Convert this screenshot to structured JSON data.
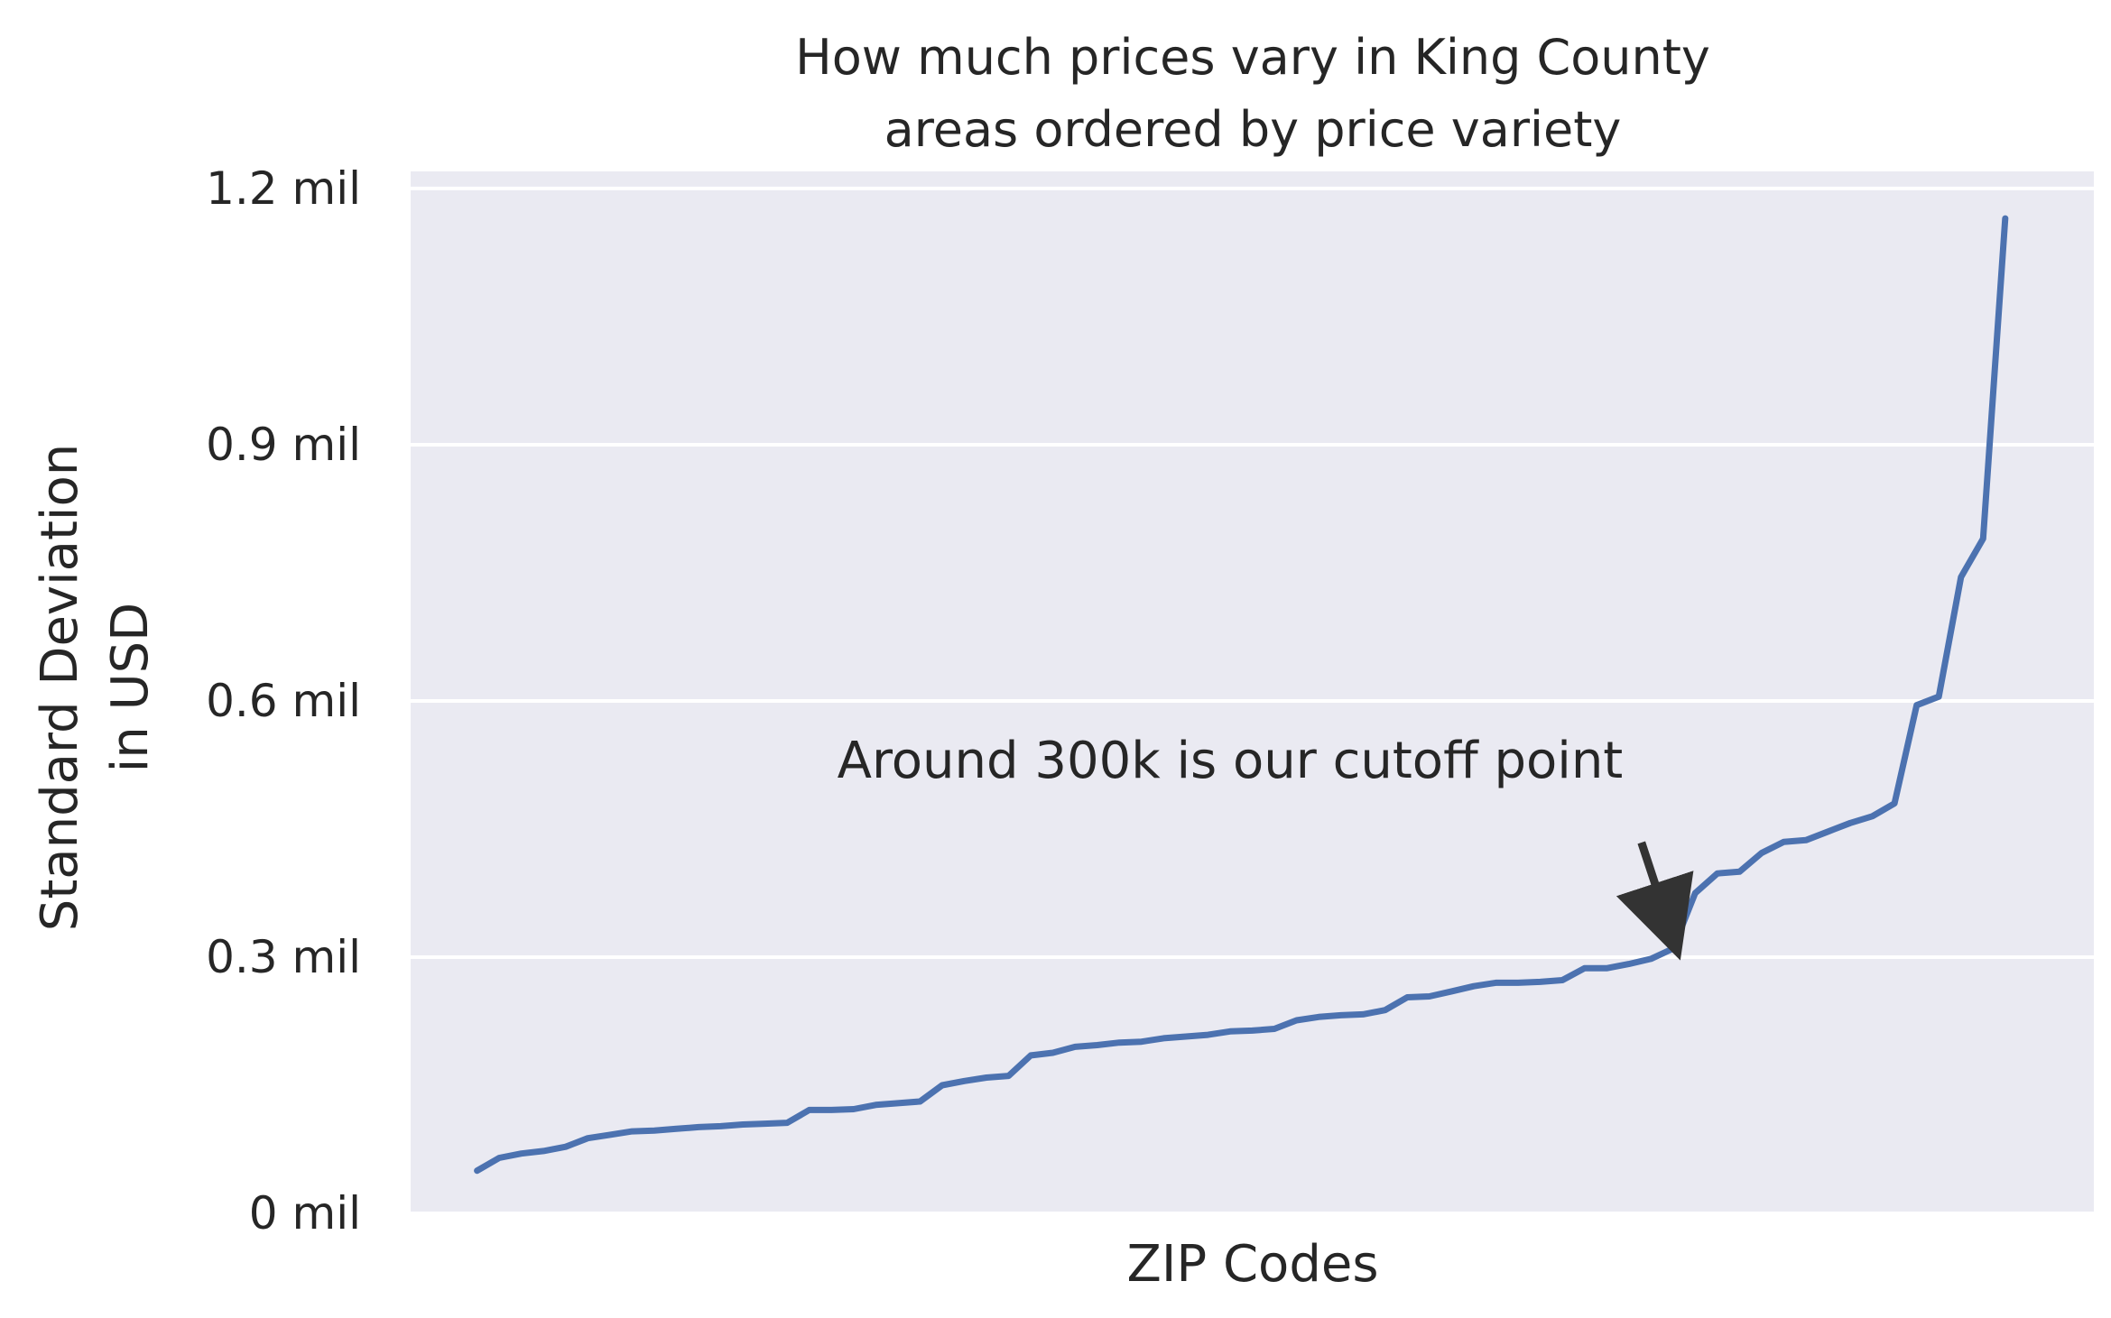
{
  "chart_data": {
    "type": "line",
    "title_lines": [
      "How much prices vary in King County",
      "areas ordered by price variety"
    ],
    "xlabel": "ZIP Codes",
    "ylabel_lines": [
      "Standard Deviation",
      "in USD"
    ],
    "ylim": [
      0,
      1.22
    ],
    "yticks": [
      {
        "value": 0,
        "label": "0 mil"
      },
      {
        "value": 0.3,
        "label": "0.3 mil"
      },
      {
        "value": 0.6,
        "label": "0.6 mil"
      },
      {
        "value": 0.9,
        "label": "0.9 mil"
      },
      {
        "value": 1.2,
        "label": "1.2 mil"
      }
    ],
    "xlim": [
      -3,
      73
    ],
    "grid": true,
    "series": [
      {
        "color": "#4c72b0",
        "x": [
          0,
          1,
          2,
          3,
          4,
          5,
          6,
          7,
          8,
          9,
          10,
          11,
          12,
          13,
          14,
          15,
          16,
          17,
          18,
          19,
          20,
          21,
          22,
          23,
          24,
          25,
          26,
          27,
          28,
          29,
          30,
          31,
          32,
          33,
          34,
          35,
          36,
          37,
          38,
          39,
          40,
          41,
          42,
          43,
          44,
          45,
          46,
          47,
          48,
          49,
          50,
          51,
          52,
          53,
          54,
          55,
          56,
          57,
          58,
          59,
          60,
          61,
          62,
          63,
          64,
          65,
          66,
          67,
          68,
          69
        ],
        "values": [
          0.05,
          0.065,
          0.07,
          0.073,
          0.078,
          0.088,
          0.092,
          0.096,
          0.097,
          0.099,
          0.101,
          0.102,
          0.104,
          0.105,
          0.106,
          0.121,
          0.121,
          0.122,
          0.127,
          0.129,
          0.131,
          0.15,
          0.155,
          0.159,
          0.161,
          0.185,
          0.188,
          0.195,
          0.197,
          0.2,
          0.201,
          0.205,
          0.207,
          0.209,
          0.213,
          0.214,
          0.216,
          0.226,
          0.23,
          0.232,
          0.233,
          0.238,
          0.253,
          0.254,
          0.26,
          0.266,
          0.27,
          0.27,
          0.271,
          0.273,
          0.287,
          0.287,
          0.292,
          0.298,
          0.31,
          0.375,
          0.398,
          0.4,
          0.422,
          0.435,
          0.437,
          0.447,
          0.457,
          0.465,
          0.48,
          0.595,
          0.605,
          0.745,
          0.79,
          1.165
        ]
      }
    ],
    "annotations": [
      {
        "text": "Around 300k is our cutoff point",
        "point": [
          54.0,
          0.318
        ],
        "text_anchor": [
          34,
          0.51
        ]
      }
    ]
  }
}
